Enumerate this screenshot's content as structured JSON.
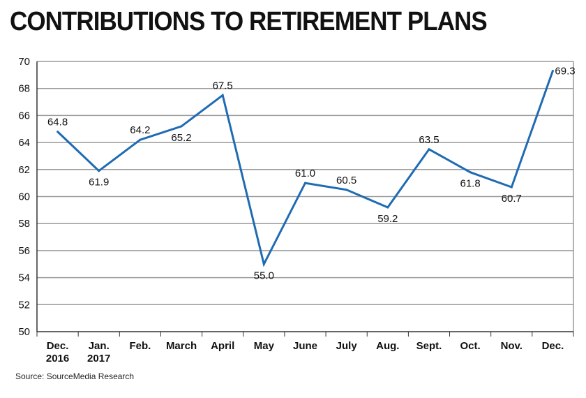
{
  "chart_data": {
    "type": "line",
    "title": "CONTRIBUTIONS TO RETIREMENT PLANS",
    "categories": [
      [
        "Dec.",
        "2016"
      ],
      [
        "Jan.",
        "2017"
      ],
      [
        "Feb."
      ],
      [
        "March"
      ],
      [
        "April"
      ],
      [
        "May"
      ],
      [
        "June"
      ],
      [
        "July"
      ],
      [
        "Aug."
      ],
      [
        "Sept."
      ],
      [
        "Oct."
      ],
      [
        "Nov."
      ],
      [
        "Dec."
      ]
    ],
    "values": [
      64.8,
      61.9,
      64.2,
      65.2,
      67.5,
      55.0,
      61.0,
      60.5,
      59.2,
      63.5,
      61.8,
      60.7,
      69.3
    ],
    "labels": [
      "64.8",
      "61.9",
      "64.2",
      "65.2",
      "67.5",
      "55.0",
      "61.0",
      "60.5",
      "59.2",
      "63.5",
      "61.8",
      "60.7",
      "69.3"
    ],
    "ylim": [
      50,
      70
    ],
    "yticks": [
      "50",
      "52",
      "54",
      "56",
      "58",
      "60",
      "62",
      "64",
      "66",
      "68",
      "70"
    ],
    "xlabel": "",
    "ylabel": "",
    "grid": true,
    "line_color": "#1f6bb3",
    "source": "Source: SourceMedia Research"
  }
}
